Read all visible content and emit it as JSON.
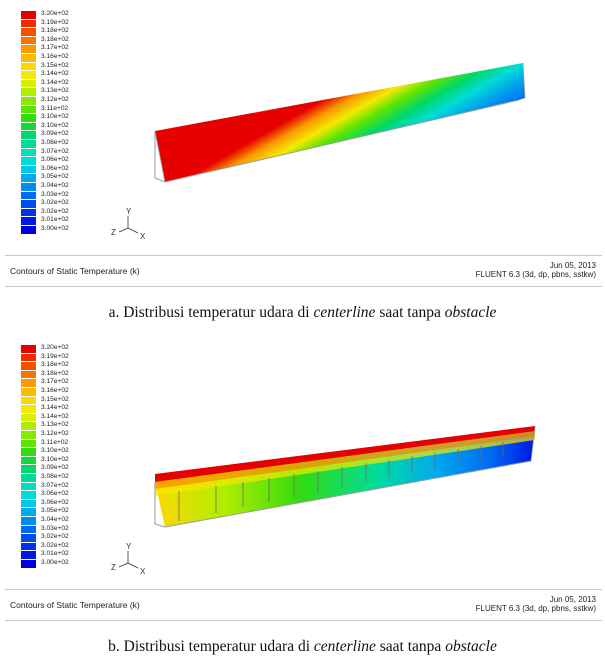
{
  "legend_labels": [
    "3.20e+02",
    "3.19e+02",
    "3.18e+02",
    "3.18e+02",
    "3.17e+02",
    "3.16e+02",
    "3.15e+02",
    "3.14e+02",
    "3.14e+02",
    "3.13e+02",
    "3.12e+02",
    "3.11e+02",
    "3.10e+02",
    "3.10e+02",
    "3.09e+02",
    "3.08e+02",
    "3.07e+02",
    "3.06e+02",
    "3.06e+02",
    "3.05e+02",
    "3.04e+02",
    "3.03e+02",
    "3.02e+02",
    "3.02e+02",
    "3.01e+02",
    "3.00e+02"
  ],
  "legend_colors": [
    "#e60000",
    "#f22a00",
    "#f55000",
    "#f77500",
    "#f99a00",
    "#fbbc00",
    "#fcd800",
    "#f3ea00",
    "#d6f000",
    "#b0ee00",
    "#86ea00",
    "#5de400",
    "#33dc10",
    "#12d83a",
    "#00d86a",
    "#00dc98",
    "#00e0c0",
    "#00dcd8",
    "#00c8e6",
    "#00aaee",
    "#008cf0",
    "#006cf0",
    "#004cee",
    "#0032ea",
    "#0018e6",
    "#0000dd"
  ],
  "axes": {
    "y": "Y",
    "z": "Z",
    "x": "X"
  },
  "panels": [
    {
      "id": "a",
      "footer_title": "Contours of Static Temperature (k)",
      "footer_date": "Jun 05, 2013",
      "footer_solver": "FLUENT 6.3 (3d, dp, pbns, sstkw)",
      "caption_prefix": "a. Distribusi temperatur udara di ",
      "caption_em1": "centerline",
      "caption_mid": " saat tanpa ",
      "caption_em2": "obstacle"
    },
    {
      "id": "b",
      "footer_title": "Contours of Static Temperature (k)",
      "footer_date": "Jun 05, 2013",
      "footer_solver": "FLUENT 6.3 (3d, dp, pbns, sstkw)",
      "caption_prefix": "b. Distribusi temperatur udara di ",
      "caption_em1": "centerline",
      "caption_mid": " saat tanpa ",
      "caption_em2": "obstacle"
    }
  ]
}
